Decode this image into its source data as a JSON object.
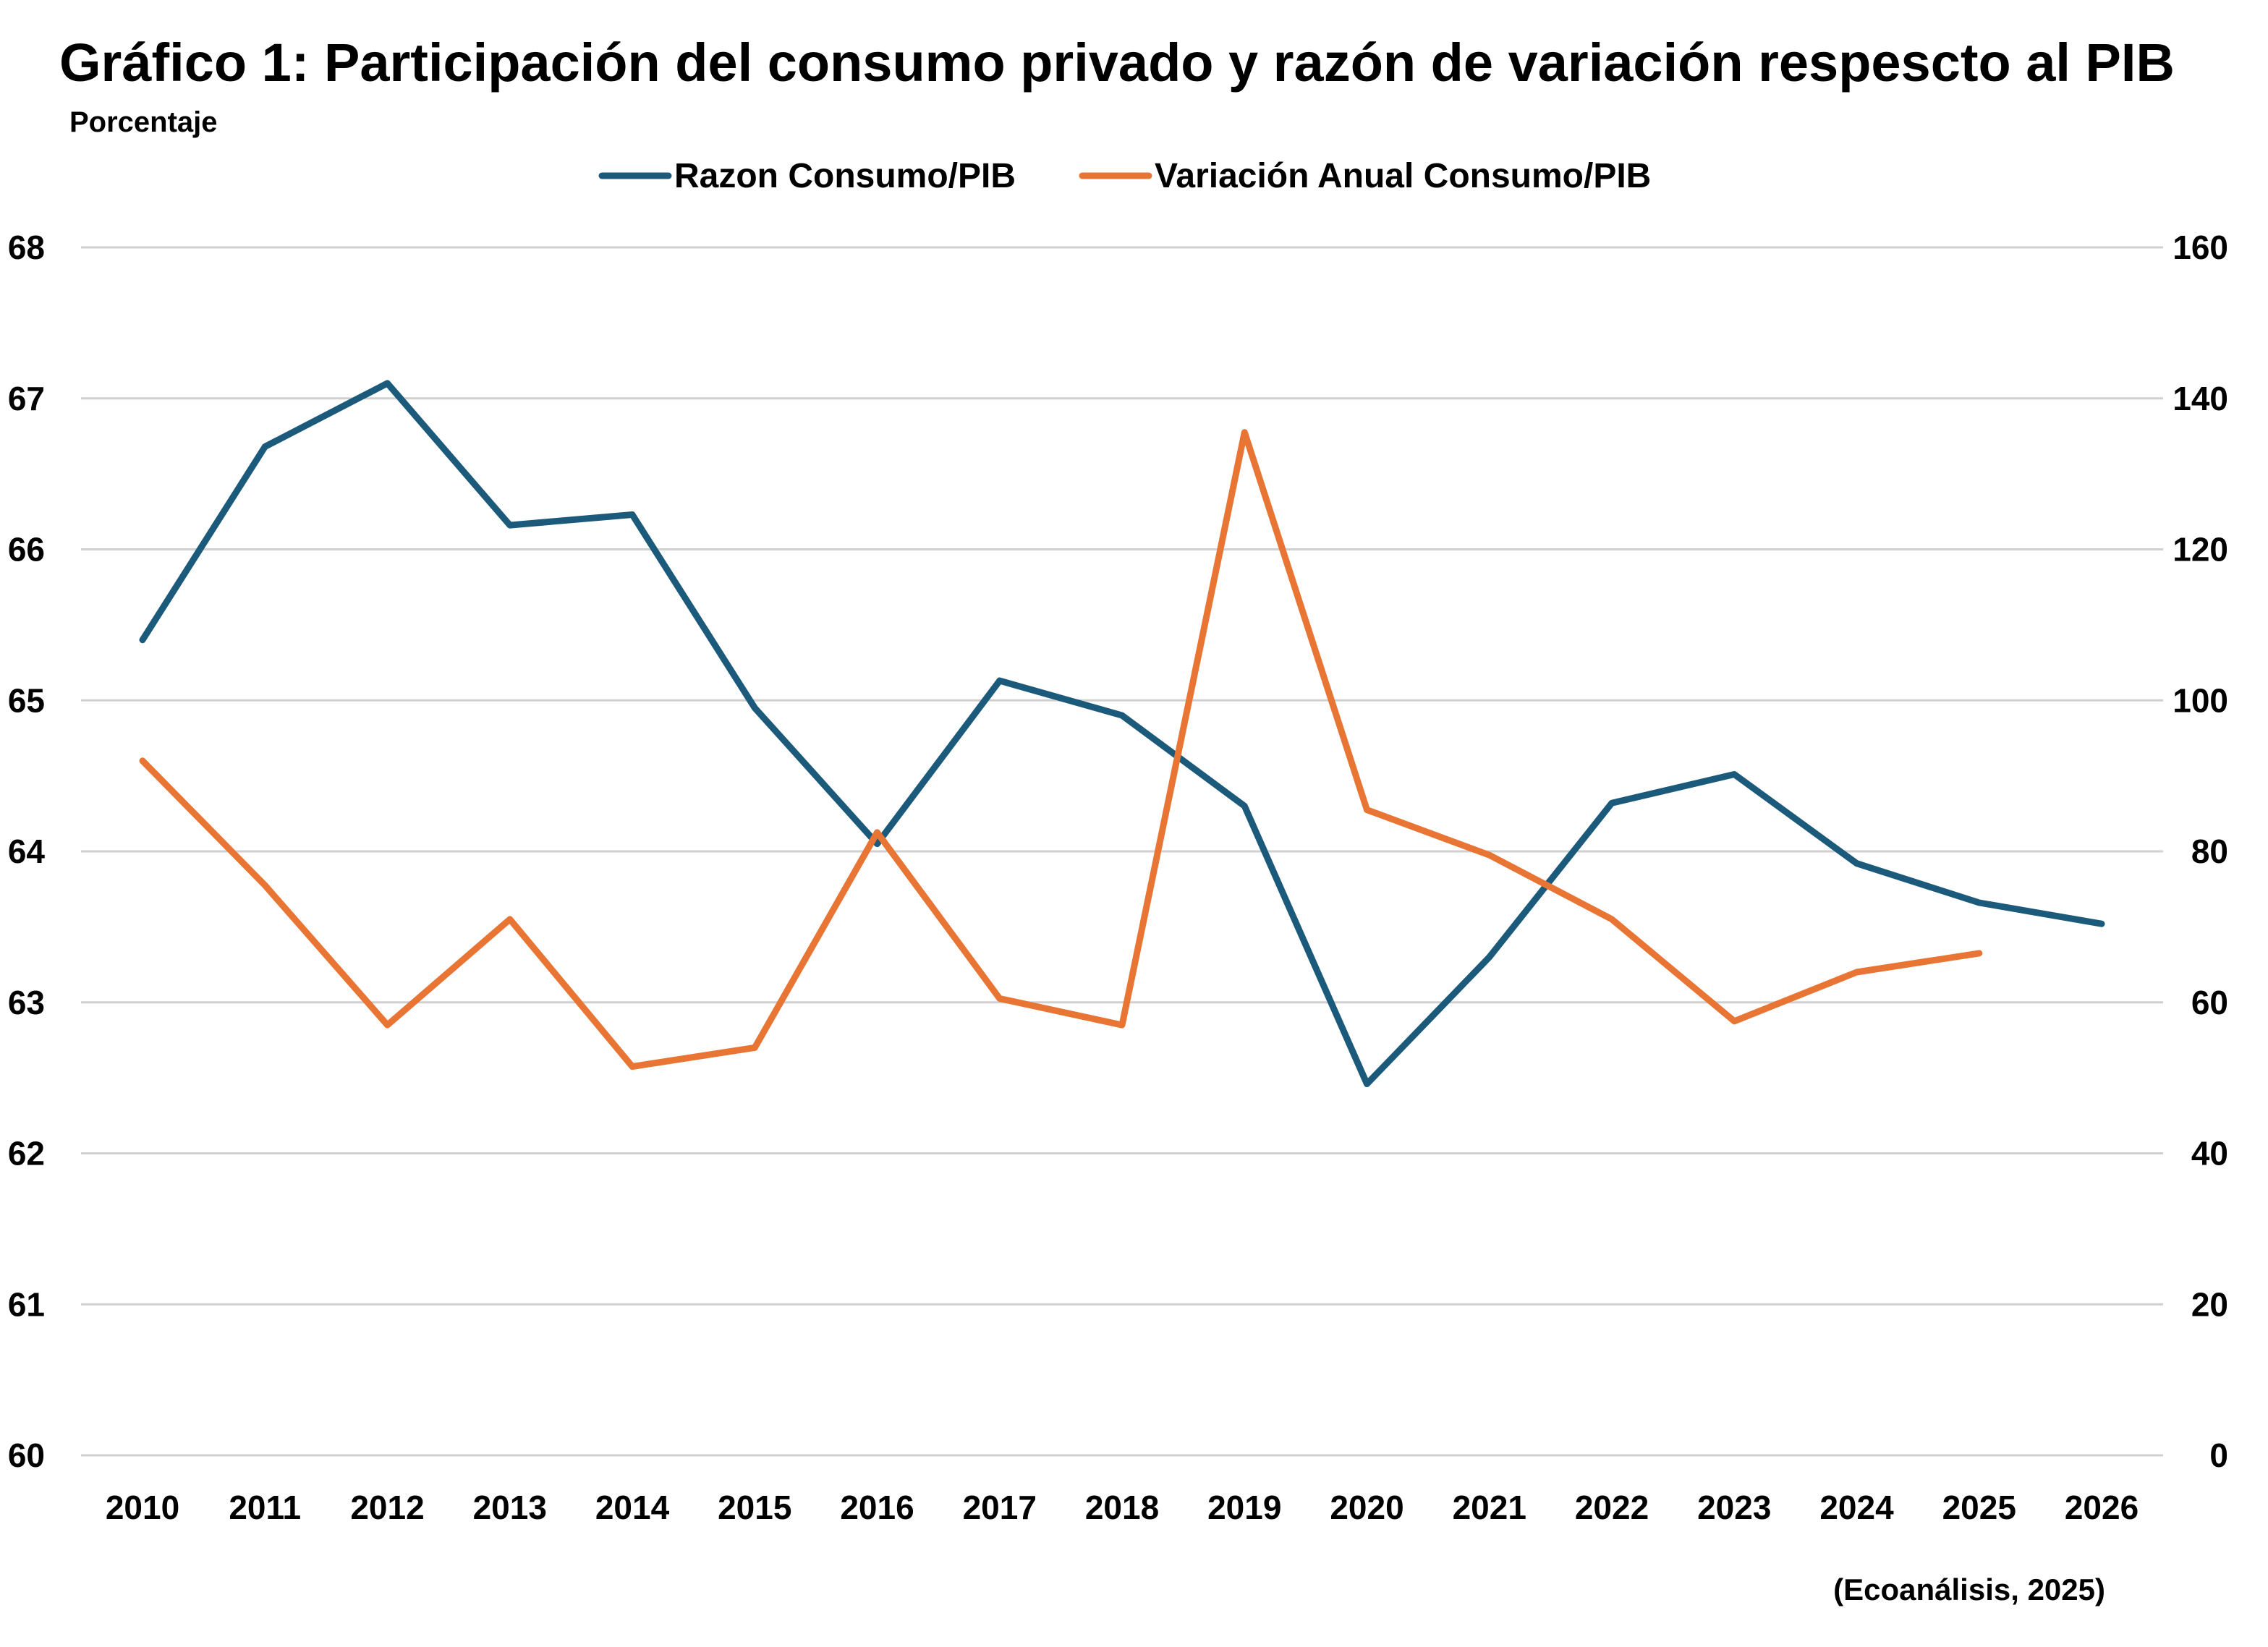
{
  "chart_data": {
    "type": "line",
    "title": "Gráfico 1: Participación del consumo privado y razón de variación respescto al PIB",
    "ylabel": "Porcentaje",
    "source": "(Ecoanálisis, 2025)",
    "categories": [
      "2010",
      "2011",
      "2012",
      "2013",
      "2014",
      "2015",
      "2016",
      "2017",
      "2018",
      "2019",
      "2020",
      "2021",
      "2022",
      "2023",
      "2024",
      "2025",
      "2026"
    ],
    "y_left": {
      "min": 60,
      "max": 68,
      "ticks": [
        "60",
        "61",
        "62",
        "63",
        "64",
        "65",
        "66",
        "67",
        "68"
      ]
    },
    "y_right": {
      "min": 0,
      "max": 160,
      "ticks": [
        "0",
        "20",
        "40",
        "60",
        "80",
        "100",
        "120",
        "140",
        "160"
      ]
    },
    "grid": true,
    "legend_position": "top-center",
    "series": [
      {
        "name": "Razon Consumo/PIB",
        "axis": "left",
        "color": "#1b5a7a",
        "values": [
          65.4,
          66.68,
          67.1,
          66.16,
          66.23,
          64.95,
          64.05,
          65.13,
          64.9,
          64.3,
          62.46,
          63.3,
          64.32,
          64.51,
          63.92,
          63.66,
          63.52
        ]
      },
      {
        "name": "Variación Anual Consumo/PIB",
        "axis": "right",
        "color": "#e87534",
        "values": [
          92,
          75.5,
          57,
          71,
          51.5,
          54,
          82.5,
          60.5,
          57,
          135.5,
          85.5,
          79.5,
          71,
          57.5,
          64,
          66.5,
          null
        ]
      }
    ]
  }
}
